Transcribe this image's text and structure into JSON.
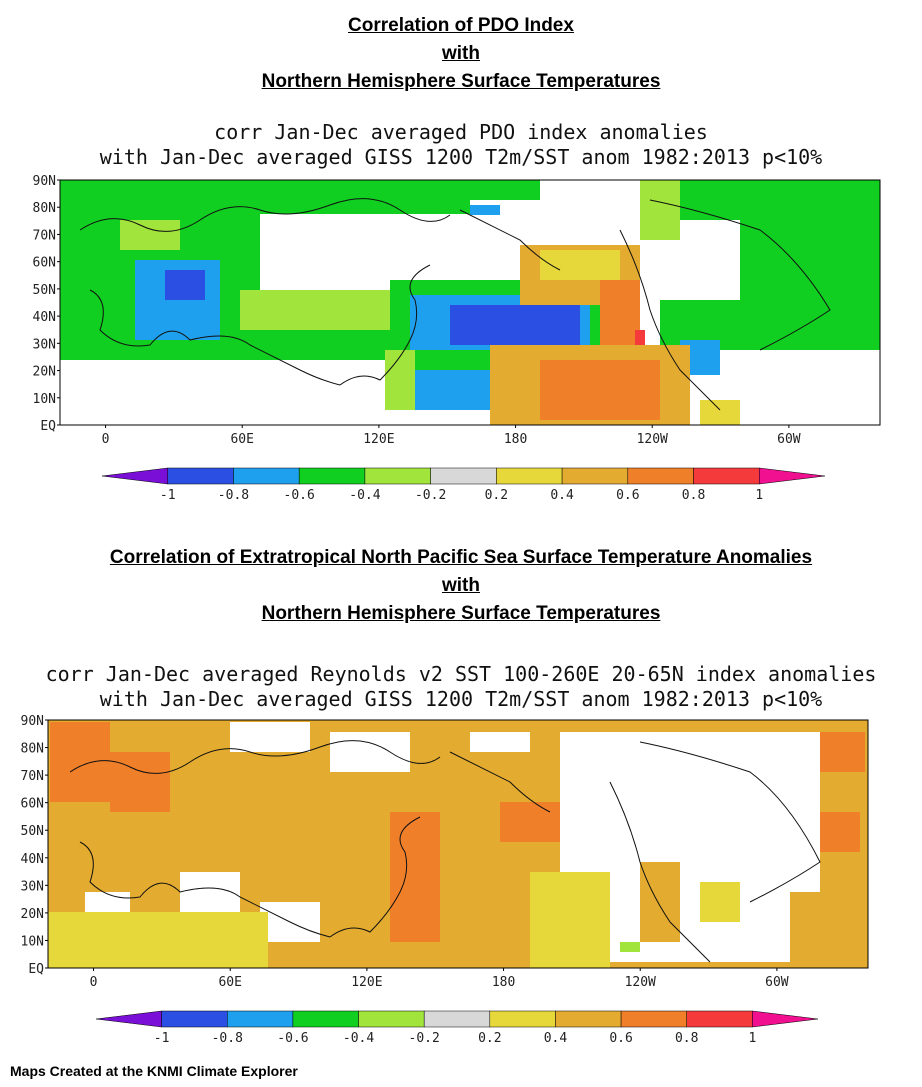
{
  "map1": {
    "heading": [
      "Correlation of PDO Index",
      "with",
      "Northern Hemisphere Surface Temperatures"
    ],
    "subtitle": [
      "corr Jan-Dec averaged PDO index anomalies",
      "with Jan-Dec averaged GISS 1200 T2m/SST anom 1982:2013 p<10%"
    ],
    "lat_labels": [
      "90N",
      "80N",
      "70N",
      "60N",
      "50N",
      "40N",
      "30N",
      "20N",
      "10N",
      "EQ"
    ],
    "lon_labels": [
      "0",
      "60E",
      "120E",
      "180",
      "120W",
      "60W"
    ]
  },
  "map2": {
    "heading": [
      "Correlation of Extratropical North Pacific Sea Surface Temperature Anomalies",
      "with",
      "Northern Hemisphere Surface Temperatures"
    ],
    "subtitle": [
      "corr Jan-Dec averaged Reynolds v2 SST 100-260E 20-65N index anomalies",
      "with Jan-Dec averaged GISS 1200 T2m/SST anom 1982:2013 p<10%"
    ],
    "lat_labels": [
      "90N",
      "80N",
      "70N",
      "60N",
      "50N",
      "40N",
      "30N",
      "20N",
      "10N",
      "EQ"
    ],
    "lon_labels": [
      "0",
      "60E",
      "120E",
      "180",
      "120W",
      "60W"
    ]
  },
  "colorbar": {
    "tick_labels": [
      "-1",
      "-0.8",
      "-0.6",
      "-0.4",
      "-0.2",
      "0.2",
      "0.4",
      "0.6",
      "0.8",
      "1"
    ],
    "colors": [
      "#2b4fe3",
      "#1fa0ee",
      "#10cf20",
      "#a0e43c",
      "#d8d8d8",
      "#e6d83a",
      "#e3ac30",
      "#f07f2a",
      "#f43a3a"
    ],
    "under_color": "#7a10d8",
    "over_color": "#f01090"
  },
  "footer": "Maps Created at the KNMI Climate Explorer"
}
